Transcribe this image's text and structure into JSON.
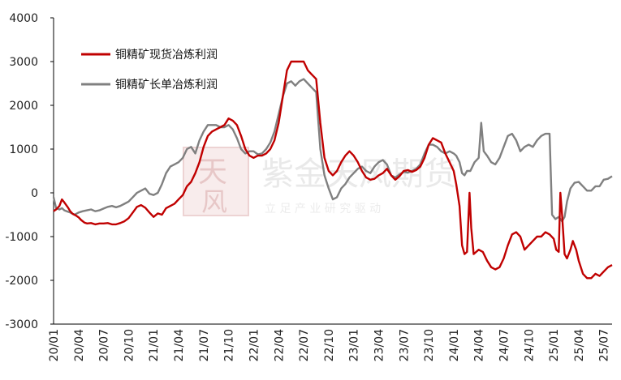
{
  "chart_data": {
    "type": "line",
    "title": "",
    "xlabel": "",
    "ylabel": "",
    "ylim": [
      -3000,
      4000
    ],
    "yticks": [
      4000,
      3000,
      2000,
      1000,
      0,
      -1000,
      -2000,
      -3000
    ],
    "x_tick_labels": [
      "20/01",
      "20/04",
      "20/07",
      "20/10",
      "21/01",
      "21/04",
      "21/07",
      "21/10",
      "22/01",
      "22/04",
      "22/07",
      "22/10",
      "23/01",
      "23/04",
      "23/07",
      "23/10",
      "24/01",
      "24/04",
      "24/07",
      "24/10",
      "25/01",
      "25/04",
      "25/07"
    ],
    "legend_position": "top-left",
    "grid": false,
    "series": [
      {
        "name": "铜精矿现货冶炼利润",
        "color": "#c00000",
        "points": [
          [
            0,
            -420
          ],
          [
            0.3,
            -380
          ],
          [
            0.7,
            -300
          ],
          [
            1.0,
            -150
          ],
          [
            1.3,
            -220
          ],
          [
            1.7,
            -330
          ],
          [
            2.0,
            -420
          ],
          [
            2.3,
            -480
          ],
          [
            2.7,
            -520
          ],
          [
            3.0,
            -560
          ],
          [
            3.3,
            -620
          ],
          [
            3.7,
            -680
          ],
          [
            4.0,
            -700
          ],
          [
            4.5,
            -690
          ],
          [
            5.0,
            -720
          ],
          [
            5.5,
            -700
          ],
          [
            6.0,
            -700
          ],
          [
            6.5,
            -690
          ],
          [
            7.0,
            -720
          ],
          [
            7.5,
            -720
          ],
          [
            8.0,
            -690
          ],
          [
            8.5,
            -650
          ],
          [
            9.0,
            -580
          ],
          [
            9.5,
            -450
          ],
          [
            10.0,
            -320
          ],
          [
            10.5,
            -280
          ],
          [
            11.0,
            -340
          ],
          [
            11.5,
            -450
          ],
          [
            12.0,
            -550
          ],
          [
            12.5,
            -470
          ],
          [
            13.0,
            -500
          ],
          [
            13.5,
            -350
          ],
          [
            14.0,
            -300
          ],
          [
            14.5,
            -250
          ],
          [
            15.0,
            -150
          ],
          [
            15.5,
            -50
          ],
          [
            16.0,
            150
          ],
          [
            16.5,
            250
          ],
          [
            17.0,
            450
          ],
          [
            17.5,
            700
          ],
          [
            18.0,
            1050
          ],
          [
            18.5,
            1300
          ],
          [
            19.0,
            1400
          ],
          [
            19.5,
            1450
          ],
          [
            20.0,
            1500
          ],
          [
            20.5,
            1550
          ],
          [
            21.0,
            1700
          ],
          [
            21.5,
            1650
          ],
          [
            22.0,
            1550
          ],
          [
            22.5,
            1300
          ],
          [
            23.0,
            1000
          ],
          [
            23.5,
            850
          ],
          [
            24.0,
            800
          ],
          [
            24.5,
            850
          ],
          [
            25.0,
            850
          ],
          [
            25.5,
            900
          ],
          [
            26.0,
            1000
          ],
          [
            26.5,
            1200
          ],
          [
            27.0,
            1600
          ],
          [
            27.5,
            2200
          ],
          [
            28.0,
            2800
          ],
          [
            28.5,
            3000
          ],
          [
            29.0,
            3000
          ],
          [
            29.5,
            3000
          ],
          [
            30.0,
            3000
          ],
          [
            30.5,
            2800
          ],
          [
            31.0,
            2700
          ],
          [
            31.5,
            2600
          ],
          [
            32.0,
            1600
          ],
          [
            32.5,
            800
          ],
          [
            33.0,
            500
          ],
          [
            33.5,
            400
          ],
          [
            34.0,
            500
          ],
          [
            34.5,
            700
          ],
          [
            35.0,
            850
          ],
          [
            35.5,
            950
          ],
          [
            36.0,
            850
          ],
          [
            36.5,
            700
          ],
          [
            37.0,
            500
          ],
          [
            37.5,
            350
          ],
          [
            38.0,
            300
          ],
          [
            38.5,
            320
          ],
          [
            39.0,
            400
          ],
          [
            39.5,
            450
          ],
          [
            40.0,
            550
          ],
          [
            40.5,
            400
          ],
          [
            41.0,
            300
          ],
          [
            41.5,
            380
          ],
          [
            42.0,
            500
          ],
          [
            42.5,
            520
          ],
          [
            43.0,
            480
          ],
          [
            43.5,
            520
          ],
          [
            44.0,
            600
          ],
          [
            44.5,
            800
          ],
          [
            45.0,
            1100
          ],
          [
            45.5,
            1250
          ],
          [
            46.0,
            1200
          ],
          [
            46.5,
            1150
          ],
          [
            47.0,
            900
          ],
          [
            47.5,
            700
          ],
          [
            48.0,
            500
          ],
          [
            48.3,
            200
          ],
          [
            48.7,
            -300
          ],
          [
            49.0,
            -1200
          ],
          [
            49.3,
            -1400
          ],
          [
            49.6,
            -1350
          ],
          [
            49.9,
            0
          ],
          [
            50.1,
            -800
          ],
          [
            50.4,
            -1400
          ],
          [
            50.7,
            -1350
          ],
          [
            51.0,
            -1300
          ],
          [
            51.5,
            -1350
          ],
          [
            52.0,
            -1550
          ],
          [
            52.5,
            -1700
          ],
          [
            53.0,
            -1750
          ],
          [
            53.5,
            -1700
          ],
          [
            54.0,
            -1500
          ],
          [
            54.5,
            -1200
          ],
          [
            55.0,
            -950
          ],
          [
            55.5,
            -900
          ],
          [
            56.0,
            -1000
          ],
          [
            56.5,
            -1300
          ],
          [
            57.0,
            -1200
          ],
          [
            57.5,
            -1100
          ],
          [
            58.0,
            -1000
          ],
          [
            58.5,
            -1000
          ],
          [
            59.0,
            -900
          ],
          [
            59.5,
            -950
          ],
          [
            60.0,
            -1050
          ],
          [
            60.3,
            -1300
          ],
          [
            60.6,
            -1350
          ],
          [
            60.8,
            0
          ],
          [
            61.0,
            -500
          ],
          [
            61.3,
            -1400
          ],
          [
            61.6,
            -1500
          ],
          [
            62.0,
            -1300
          ],
          [
            62.3,
            -1100
          ],
          [
            62.7,
            -1300
          ],
          [
            63.0,
            -1550
          ],
          [
            63.5,
            -1850
          ],
          [
            64.0,
            -1950
          ],
          [
            64.5,
            -1950
          ],
          [
            65.0,
            -1850
          ],
          [
            65.5,
            -1900
          ],
          [
            66.0,
            -1800
          ],
          [
            66.5,
            -1700
          ],
          [
            67.0,
            -1650
          ]
        ]
      },
      {
        "name": "铜精矿长单冶炼利润",
        "color": "#808080",
        "points": [
          [
            0,
            -100
          ],
          [
            0.3,
            -350
          ],
          [
            0.7,
            -380
          ],
          [
            1.0,
            -350
          ],
          [
            1.3,
            -400
          ],
          [
            1.7,
            -430
          ],
          [
            2.0,
            -450
          ],
          [
            2.5,
            -500
          ],
          [
            3.0,
            -450
          ],
          [
            3.5,
            -420
          ],
          [
            4.0,
            -400
          ],
          [
            4.5,
            -380
          ],
          [
            5.0,
            -420
          ],
          [
            5.5,
            -400
          ],
          [
            6.0,
            -360
          ],
          [
            6.5,
            -320
          ],
          [
            7.0,
            -300
          ],
          [
            7.5,
            -330
          ],
          [
            8.0,
            -300
          ],
          [
            8.5,
            -250
          ],
          [
            9.0,
            -200
          ],
          [
            9.5,
            -100
          ],
          [
            10.0,
            0
          ],
          [
            10.5,
            50
          ],
          [
            11.0,
            100
          ],
          [
            11.5,
            -20
          ],
          [
            12.0,
            -50
          ],
          [
            12.5,
            0
          ],
          [
            13.0,
            200
          ],
          [
            13.5,
            450
          ],
          [
            14.0,
            600
          ],
          [
            14.5,
            650
          ],
          [
            15.0,
            700
          ],
          [
            15.5,
            800
          ],
          [
            16.0,
            1000
          ],
          [
            16.5,
            1050
          ],
          [
            17.0,
            900
          ],
          [
            17.5,
            1200
          ],
          [
            18.0,
            1400
          ],
          [
            18.5,
            1550
          ],
          [
            19.0,
            1550
          ],
          [
            19.5,
            1550
          ],
          [
            20.0,
            1500
          ],
          [
            20.5,
            1500
          ],
          [
            21.0,
            1550
          ],
          [
            21.5,
            1450
          ],
          [
            22.0,
            1250
          ],
          [
            22.5,
            1000
          ],
          [
            23.0,
            900
          ],
          [
            23.5,
            950
          ],
          [
            24.0,
            950
          ],
          [
            24.5,
            880
          ],
          [
            25.0,
            900
          ],
          [
            25.5,
            1000
          ],
          [
            26.0,
            1150
          ],
          [
            26.5,
            1400
          ],
          [
            27.0,
            1800
          ],
          [
            27.5,
            2200
          ],
          [
            28.0,
            2500
          ],
          [
            28.5,
            2550
          ],
          [
            29.0,
            2450
          ],
          [
            29.5,
            2550
          ],
          [
            30.0,
            2600
          ],
          [
            30.5,
            2500
          ],
          [
            31.0,
            2400
          ],
          [
            31.5,
            2300
          ],
          [
            32.0,
            1000
          ],
          [
            32.5,
            400
          ],
          [
            33.0,
            100
          ],
          [
            33.5,
            -150
          ],
          [
            34.0,
            -100
          ],
          [
            34.5,
            100
          ],
          [
            35.0,
            200
          ],
          [
            35.5,
            350
          ],
          [
            36.0,
            450
          ],
          [
            36.5,
            550
          ],
          [
            37.0,
            600
          ],
          [
            37.5,
            500
          ],
          [
            38.0,
            450
          ],
          [
            38.5,
            600
          ],
          [
            39.0,
            700
          ],
          [
            39.5,
            750
          ],
          [
            40.0,
            650
          ],
          [
            40.5,
            400
          ],
          [
            41.0,
            350
          ],
          [
            41.5,
            420
          ],
          [
            42.0,
            480
          ],
          [
            42.5,
            460
          ],
          [
            43.0,
            500
          ],
          [
            43.5,
            550
          ],
          [
            44.0,
            650
          ],
          [
            44.5,
            900
          ],
          [
            45.0,
            1100
          ],
          [
            45.5,
            1100
          ],
          [
            46.0,
            1050
          ],
          [
            46.5,
            950
          ],
          [
            47.0,
            900
          ],
          [
            47.5,
            950
          ],
          [
            48.0,
            900
          ],
          [
            48.3,
            850
          ],
          [
            48.7,
            700
          ],
          [
            49.0,
            450
          ],
          [
            49.3,
            400
          ],
          [
            49.6,
            500
          ],
          [
            50.0,
            500
          ],
          [
            50.5,
            700
          ],
          [
            51.0,
            800
          ],
          [
            51.3,
            1600
          ],
          [
            51.6,
            950
          ],
          [
            52.0,
            850
          ],
          [
            52.5,
            700
          ],
          [
            53.0,
            650
          ],
          [
            53.5,
            800
          ],
          [
            54.0,
            1050
          ],
          [
            54.5,
            1300
          ],
          [
            55.0,
            1350
          ],
          [
            55.5,
            1200
          ],
          [
            56.0,
            950
          ],
          [
            56.5,
            1050
          ],
          [
            57.0,
            1100
          ],
          [
            57.5,
            1050
          ],
          [
            58.0,
            1200
          ],
          [
            58.5,
            1300
          ],
          [
            59.0,
            1350
          ],
          [
            59.5,
            1350
          ],
          [
            59.8,
            -500
          ],
          [
            60.2,
            -600
          ],
          [
            60.6,
            -550
          ],
          [
            61.0,
            -650
          ],
          [
            61.3,
            -550
          ],
          [
            61.6,
            -200
          ],
          [
            62.0,
            100
          ],
          [
            62.5,
            230
          ],
          [
            63.0,
            250
          ],
          [
            63.5,
            150
          ],
          [
            64.0,
            50
          ],
          [
            64.5,
            50
          ],
          [
            65.0,
            150
          ],
          [
            65.5,
            150
          ],
          [
            66.0,
            300
          ],
          [
            66.5,
            320
          ],
          [
            67.0,
            380
          ]
        ]
      }
    ]
  },
  "watermark": {
    "main_text": "紫金天风期货",
    "sub_text": "立 足 产 业   研 究 驱 动",
    "seal_text": [
      "天",
      "风"
    ],
    "color": "#e8c8c8"
  }
}
